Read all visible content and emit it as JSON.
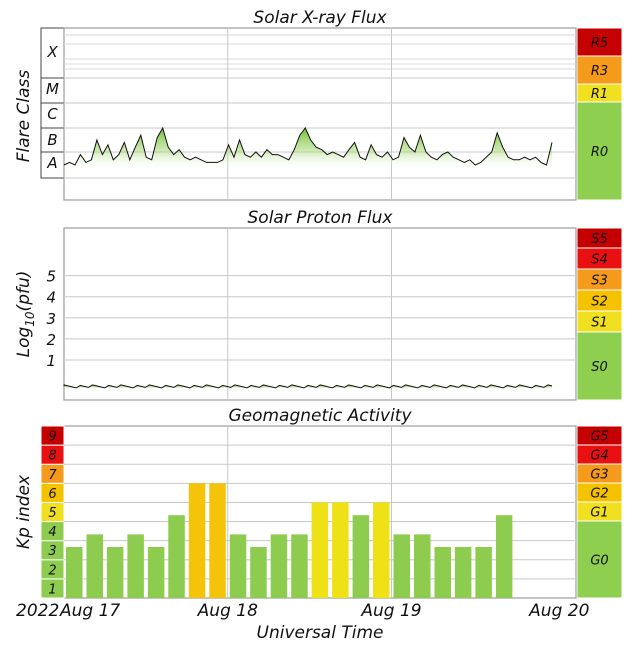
{
  "colors": {
    "g0": "#8fcf4f",
    "yellow": "#f0e020",
    "amber": "#f5c200",
    "orange": "#f59a1a",
    "red_orange": "#f06014",
    "red": "#e81010",
    "dark_red": "#c40000",
    "bar_green": "#8dcc4e",
    "bar_yellow": "#eee216",
    "bar_amber": "#f4c30a",
    "grid": "#c8c8c8",
    "text": "#111111"
  },
  "chart_data": [
    {
      "type": "area",
      "title": "Solar X-ray Flux",
      "ylabel": "Flare Class",
      "class_labels": [
        "X",
        "M",
        "C",
        "B",
        "A"
      ],
      "scale": [
        {
          "label": "R5",
          "color": "dark_red"
        },
        {
          "label": "R3",
          "color": "orange"
        },
        {
          "label": "R1",
          "color": "yellow"
        },
        {
          "label": "R0",
          "color": "g0"
        }
      ],
      "x_range_days": [
        0,
        3
      ],
      "y_axis": "logarithmic flux (A..X)",
      "series_level_class": [
        1.5,
        1.6,
        1.5,
        1.9,
        1.6,
        1.7,
        2.5,
        1.9,
        2.3,
        1.7,
        1.9,
        2.4,
        1.7,
        2.2,
        2.7,
        1.8,
        1.7,
        2.6,
        3.0,
        2.2,
        1.9,
        2.1,
        1.8,
        1.7,
        1.8,
        1.7,
        1.6,
        1.6,
        1.6,
        1.7,
        2.3,
        1.8,
        2.5,
        1.9,
        1.8,
        2.0,
        1.8,
        2.1,
        1.9,
        1.9,
        1.8,
        1.7,
        2.1,
        2.7,
        3.0,
        2.5,
        2.2,
        2.1,
        1.9,
        2.0,
        1.9,
        1.8,
        2.1,
        2.4,
        1.8,
        1.7,
        2.3,
        1.9,
        1.8,
        2.0,
        1.7,
        1.8,
        2.6,
        2.2,
        2.0,
        2.7,
        2.0,
        1.8,
        1.7,
        1.9,
        2.0,
        1.8,
        1.7,
        1.6,
        1.7,
        1.5,
        1.6,
        1.8,
        2.0,
        2.8,
        2.2,
        1.8,
        1.7,
        1.7,
        1.8,
        1.7,
        1.8,
        1.6,
        1.5,
        2.4
      ]
    },
    {
      "type": "area",
      "title": "Solar Proton Flux",
      "ylabel": "Log10(pfu)",
      "ylabel_main": "Log",
      "ylabel_sub": "10",
      "ylabel_tail": "(pfu)",
      "ticks": [
        "5",
        "4",
        "3",
        "2",
        "1"
      ],
      "scale": [
        {
          "label": "S5",
          "color": "dark_red"
        },
        {
          "label": "S4",
          "color": "red"
        },
        {
          "label": "S3",
          "color": "orange"
        },
        {
          "label": "S2",
          "color": "amber"
        },
        {
          "label": "S1",
          "color": "yellow"
        },
        {
          "label": "S0",
          "color": "g0"
        }
      ],
      "x_range_days": [
        0,
        3
      ],
      "ylim": [
        -0.7,
        5.9
      ],
      "series_level_log10": -0.25
    },
    {
      "type": "bar",
      "title": "Geomagnetic Activity",
      "ylabel": "Kp index",
      "ylim": [
        0,
        9
      ],
      "kp_levels": [
        "1",
        "2",
        "3",
        "4",
        "5",
        "6",
        "7",
        "8",
        "9"
      ],
      "kp_level_colors": [
        "bar_green",
        "bar_green",
        "bar_green",
        "bar_green",
        "yellow",
        "amber",
        "orange",
        "red",
        "dark_red"
      ],
      "scale": [
        {
          "label": "G5",
          "color": "dark_red"
        },
        {
          "label": "G4",
          "color": "red"
        },
        {
          "label": "G3",
          "color": "orange"
        },
        {
          "label": "G2",
          "color": "amber"
        },
        {
          "label": "G1",
          "color": "yellow"
        },
        {
          "label": "G0",
          "color": "g0"
        }
      ],
      "values": [
        2.67,
        3.33,
        2.67,
        3.33,
        2.67,
        4.33,
        6.0,
        6.0,
        3.33,
        2.67,
        3.33,
        3.33,
        5.0,
        5.0,
        4.33,
        5.0,
        3.33,
        3.33,
        2.67,
        2.67,
        2.67,
        4.33
      ],
      "x_start_days": 0,
      "bar_interval_hours": 3
    }
  ],
  "x_axis": {
    "title": "Universal Time",
    "year_label": "2022",
    "date_labels": [
      "Aug 17",
      "Aug 18",
      "Aug 19",
      "Aug 20"
    ]
  }
}
